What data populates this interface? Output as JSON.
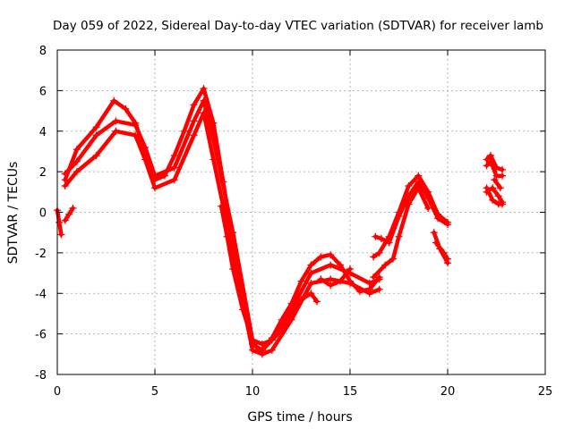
{
  "chart_data": {
    "type": "scatter",
    "title": "Day 059 of 2022, Sidereal Day-to-day VTEC variation (SDTVAR) for receiver lamb",
    "xlabel": "GPS time / hours",
    "ylabel": "SDTVAR / TECUs",
    "xlim": [
      0,
      25
    ],
    "ylim": [
      -8,
      8
    ],
    "xticks": [
      0,
      5,
      10,
      15,
      20,
      25
    ],
    "yticks": [
      -8,
      -6,
      -4,
      -2,
      0,
      2,
      4,
      6,
      8
    ],
    "grid": true,
    "marker": "+",
    "color": "#ff0000",
    "series": [
      {
        "x": [
          0.0,
          0.1,
          0.2
        ],
        "y": [
          0.1,
          -0.5,
          -1.1
        ]
      },
      {
        "x": [
          0.4,
          0.6,
          0.8
        ],
        "y": [
          -0.4,
          -0.1,
          0.2
        ]
      },
      {
        "x": [
          0.4,
          1.0,
          2.0,
          2.9,
          3.5,
          4.0,
          4.5,
          5.0,
          5.5,
          6.0,
          6.5,
          7.0,
          7.5,
          8.0,
          8.5,
          9.0,
          9.5,
          10.0,
          10.5,
          11.0,
          11.5,
          12.0,
          12.5,
          13.0,
          13.5,
          14.0,
          14.5,
          15.0,
          15.5,
          16.0,
          16.5
        ],
        "y": [
          1.6,
          3.1,
          4.2,
          5.5,
          5.1,
          4.4,
          3.0,
          1.6,
          1.8,
          2.8,
          4.0,
          5.3,
          6.1,
          4.4,
          1.5,
          -1.6,
          -4.5,
          -6.5,
          -6.8,
          -6.2,
          -5.3,
          -4.5,
          -3.4,
          -2.6,
          -2.2,
          -2.1,
          -2.6,
          -3.4,
          -3.9,
          -3.8,
          -3.2
        ]
      },
      {
        "x": [
          0.4,
          1.0,
          2.0,
          3.0,
          4.0,
          4.5,
          5.0,
          6.0,
          7.0,
          7.5,
          8.0,
          9.0,
          10.0,
          10.5,
          11.0,
          12.0,
          13.0,
          14.0,
          15.0,
          16.0,
          16.5
        ],
        "y": [
          1.9,
          2.5,
          3.8,
          4.5,
          4.3,
          3.2,
          1.8,
          2.2,
          4.5,
          5.5,
          3.6,
          -1.0,
          -6.3,
          -6.5,
          -6.3,
          -4.8,
          -3.0,
          -2.6,
          -3.0,
          -3.5,
          -3.3
        ]
      },
      {
        "x": [
          0.4,
          1.0,
          2.0,
          3.0,
          4.0,
          4.5,
          5.0,
          6.0,
          7.0,
          7.5,
          8.0,
          9.0,
          10.0,
          10.5,
          11.0,
          12.0,
          13.0,
          14.0,
          15.0,
          16.0,
          16.5
        ],
        "y": [
          1.3,
          2.0,
          2.8,
          4.0,
          3.8,
          2.6,
          1.2,
          1.6,
          3.8,
          4.9,
          2.6,
          -2.0,
          -6.8,
          -7.0,
          -6.8,
          -5.3,
          -3.5,
          -3.3,
          -3.5,
          -4.0,
          -3.8
        ]
      },
      {
        "x": [
          8.4,
          8.7,
          9.0,
          9.5,
          10.0,
          10.3
        ],
        "y": [
          0.3,
          -1.2,
          -2.8,
          -4.8,
          -6.3,
          -6.8
        ]
      },
      {
        "x": [
          10.5,
          11.0,
          11.5,
          12.0,
          12.5,
          13.0,
          13.3
        ],
        "y": [
          -6.8,
          -6.3,
          -5.8,
          -5.0,
          -4.3,
          -4.0,
          -4.4
        ]
      },
      {
        "x": [
          13.5,
          14.0,
          14.5,
          15.0
        ],
        "y": [
          -3.3,
          -3.6,
          -3.4,
          -2.8
        ]
      },
      {
        "x": [
          16.2,
          16.5,
          17.0,
          17.5,
          18.0,
          18.5,
          19.0,
          19.5,
          20.0
        ],
        "y": [
          -2.2,
          -2.0,
          -1.2,
          0.0,
          1.3,
          1.8,
          1.0,
          -0.1,
          -0.5
        ]
      },
      {
        "x": [
          16.3,
          16.6,
          17.0,
          17.5,
          18.0,
          18.5,
          19.0,
          19.5,
          20.0
        ],
        "y": [
          -1.2,
          -1.3,
          -1.5,
          -0.2,
          0.8,
          1.5,
          0.7,
          -0.3,
          -0.6
        ]
      },
      {
        "x": [
          16.2,
          16.8,
          17.2,
          17.5,
          18.0,
          18.5,
          19.0
        ],
        "y": [
          -3.2,
          -2.6,
          -2.3,
          -1.2,
          0.4,
          1.2,
          0.2
        ]
      },
      {
        "x": [
          19.3,
          19.6,
          20.0
        ],
        "y": [
          -1.0,
          -1.8,
          -2.5
        ]
      },
      {
        "x": [
          19.4,
          19.8,
          20.0
        ],
        "y": [
          -1.5,
          -2.0,
          -2.3
        ]
      },
      {
        "x": [
          22.0,
          22.2,
          22.5,
          22.8
        ],
        "y": [
          2.6,
          2.8,
          2.2,
          2.1
        ]
      },
      {
        "x": [
          22.0,
          22.2,
          22.5,
          22.8
        ],
        "y": [
          2.3,
          2.5,
          1.8,
          1.8
        ]
      },
      {
        "x": [
          22.0,
          22.3,
          22.6,
          22.8
        ],
        "y": [
          1.0,
          1.2,
          0.8,
          0.5
        ]
      },
      {
        "x": [
          22.0,
          22.3,
          22.6,
          22.8
        ],
        "y": [
          1.2,
          0.6,
          0.4,
          0.4
        ]
      },
      {
        "x": [
          22.4,
          22.7
        ],
        "y": [
          1.6,
          1.2
        ]
      }
    ]
  }
}
